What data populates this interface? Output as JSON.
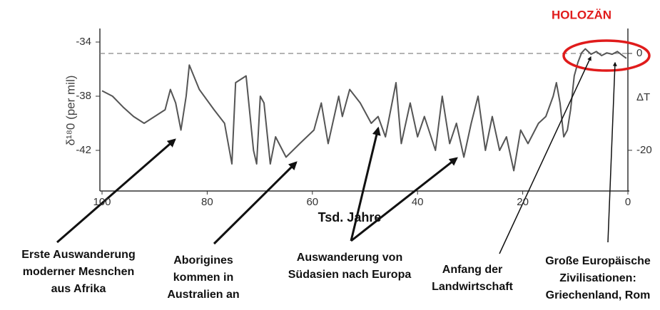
{
  "chart_data": {
    "type": "line",
    "y_label": "δ¹⁸0 (per mil)",
    "x_label": "Tsd. Jahre",
    "y2_label": "ΔT",
    "highlight_label": "HOLOZÄN",
    "xlim": [
      100,
      0
    ],
    "xticks": [
      100,
      80,
      60,
      40,
      20,
      0
    ],
    "ylim": [
      -45,
      -33
    ],
    "yticks": [
      -34,
      -38,
      -42
    ],
    "y2lim": [
      5.15,
      -28.4
    ],
    "y2ticks": [
      0,
      -20
    ],
    "reference_line": {
      "axis": "y2",
      "value": 0
    },
    "series": [
      {
        "name": "δ¹⁸0",
        "color": "#555555",
        "x": [
          100,
          98,
          96,
          94,
          92,
          90,
          88,
          87,
          86,
          85,
          84,
          83.4,
          81.5,
          78.7,
          76.7,
          75.3,
          74.6,
          72.6,
          71.2,
          70.6,
          69.9,
          69.2,
          68,
          67,
          65,
          62.4,
          59.7,
          58.3,
          57,
          55,
          54.3,
          52.9,
          50.9,
          48.8,
          47.5,
          46.1,
          44.1,
          43.1,
          41.4,
          40,
          38.7,
          36.6,
          35.3,
          33.9,
          32.6,
          31.2,
          29.8,
          28.5,
          27.1,
          25.8,
          24.4,
          23.1,
          21.7,
          20.4,
          19,
          17,
          15.6,
          14.2,
          13.6,
          12.9,
          12.2,
          11.5,
          10.9,
          10.2,
          9.5,
          8.8,
          8.1,
          7,
          6,
          5,
          4,
          3,
          2,
          1,
          0.3
        ],
        "values": [
          -37.6,
          -38,
          -38.8,
          -39.5,
          -40,
          -39.5,
          -39,
          -37.5,
          -38.5,
          -40.5,
          -38,
          -35.7,
          -37.5,
          -39,
          -40,
          -43,
          -37,
          -36.5,
          -42,
          -43,
          -38,
          -38.5,
          -43,
          -41,
          -42.5,
          -41.5,
          -40.5,
          -38.5,
          -41.5,
          -38,
          -39.5,
          -37.5,
          -38.5,
          -40,
          -39.5,
          -41,
          -37,
          -41.5,
          -38.5,
          -41,
          -39.5,
          -42,
          -38,
          -41.5,
          -40,
          -42.5,
          -40,
          -38,
          -42,
          -39.5,
          -42,
          -41,
          -43.5,
          -40.5,
          -41.5,
          -40,
          -39.5,
          -38,
          -37,
          -38.5,
          -41,
          -40.5,
          -39,
          -36.5,
          -35.5,
          -34.8,
          -34.5,
          -34.9,
          -34.7,
          -35,
          -34.8,
          -34.9,
          -34.7,
          -35,
          -35.2
        ]
      }
    ],
    "annotations": [
      {
        "lines": [
          "Erste Auswanderung",
          "moderner Mesnchen",
          "aus Afrika"
        ]
      },
      {
        "lines": [
          "Aborigines",
          "kommen in",
          "Australien an"
        ]
      },
      {
        "lines": [
          "Auswanderung von",
          "Südasien nach Europa"
        ]
      },
      {
        "lines": [
          "Anfang der",
          "Landwirtschaft"
        ]
      },
      {
        "lines": [
          "Große Europäische",
          "Zivilisationen:",
          "Griechenland, Rom"
        ]
      }
    ]
  }
}
